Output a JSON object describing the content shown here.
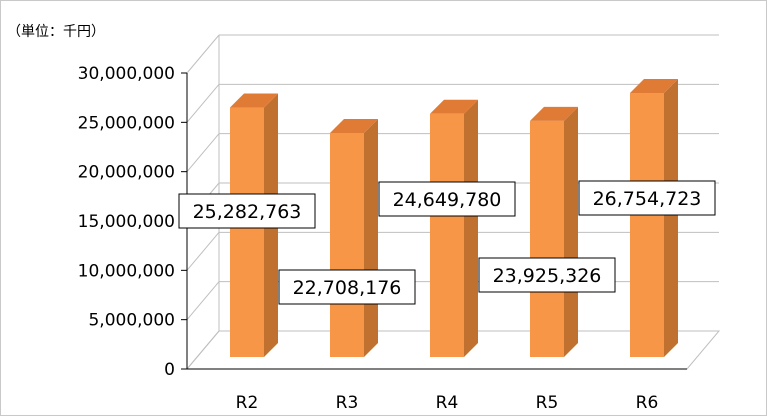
{
  "chart_data": {
    "type": "bar",
    "unit_label": "（単位：千円）",
    "categories": [
      "R2",
      "R3",
      "R4",
      "R5",
      "R6"
    ],
    "values": [
      25282763,
      22708176,
      24649780,
      23925326,
      26754723
    ],
    "value_labels": [
      "25,282,763",
      "22,708,176",
      "24,649,780",
      "23,925,326",
      "26,754,723"
    ],
    "ylim": [
      0,
      30000000
    ],
    "yticks": [
      "0",
      "5,000,000",
      "10,000,000",
      "15,000,000",
      "20,000,000",
      "25,000,000",
      "30,000,000"
    ],
    "grid": true,
    "legend": "none",
    "style": "3d-column",
    "colors": {
      "front": "#f79646",
      "side": "#c0712f",
      "top": "#e07b35",
      "label_border": "#000000",
      "grid": "#bfbfbf"
    }
  }
}
